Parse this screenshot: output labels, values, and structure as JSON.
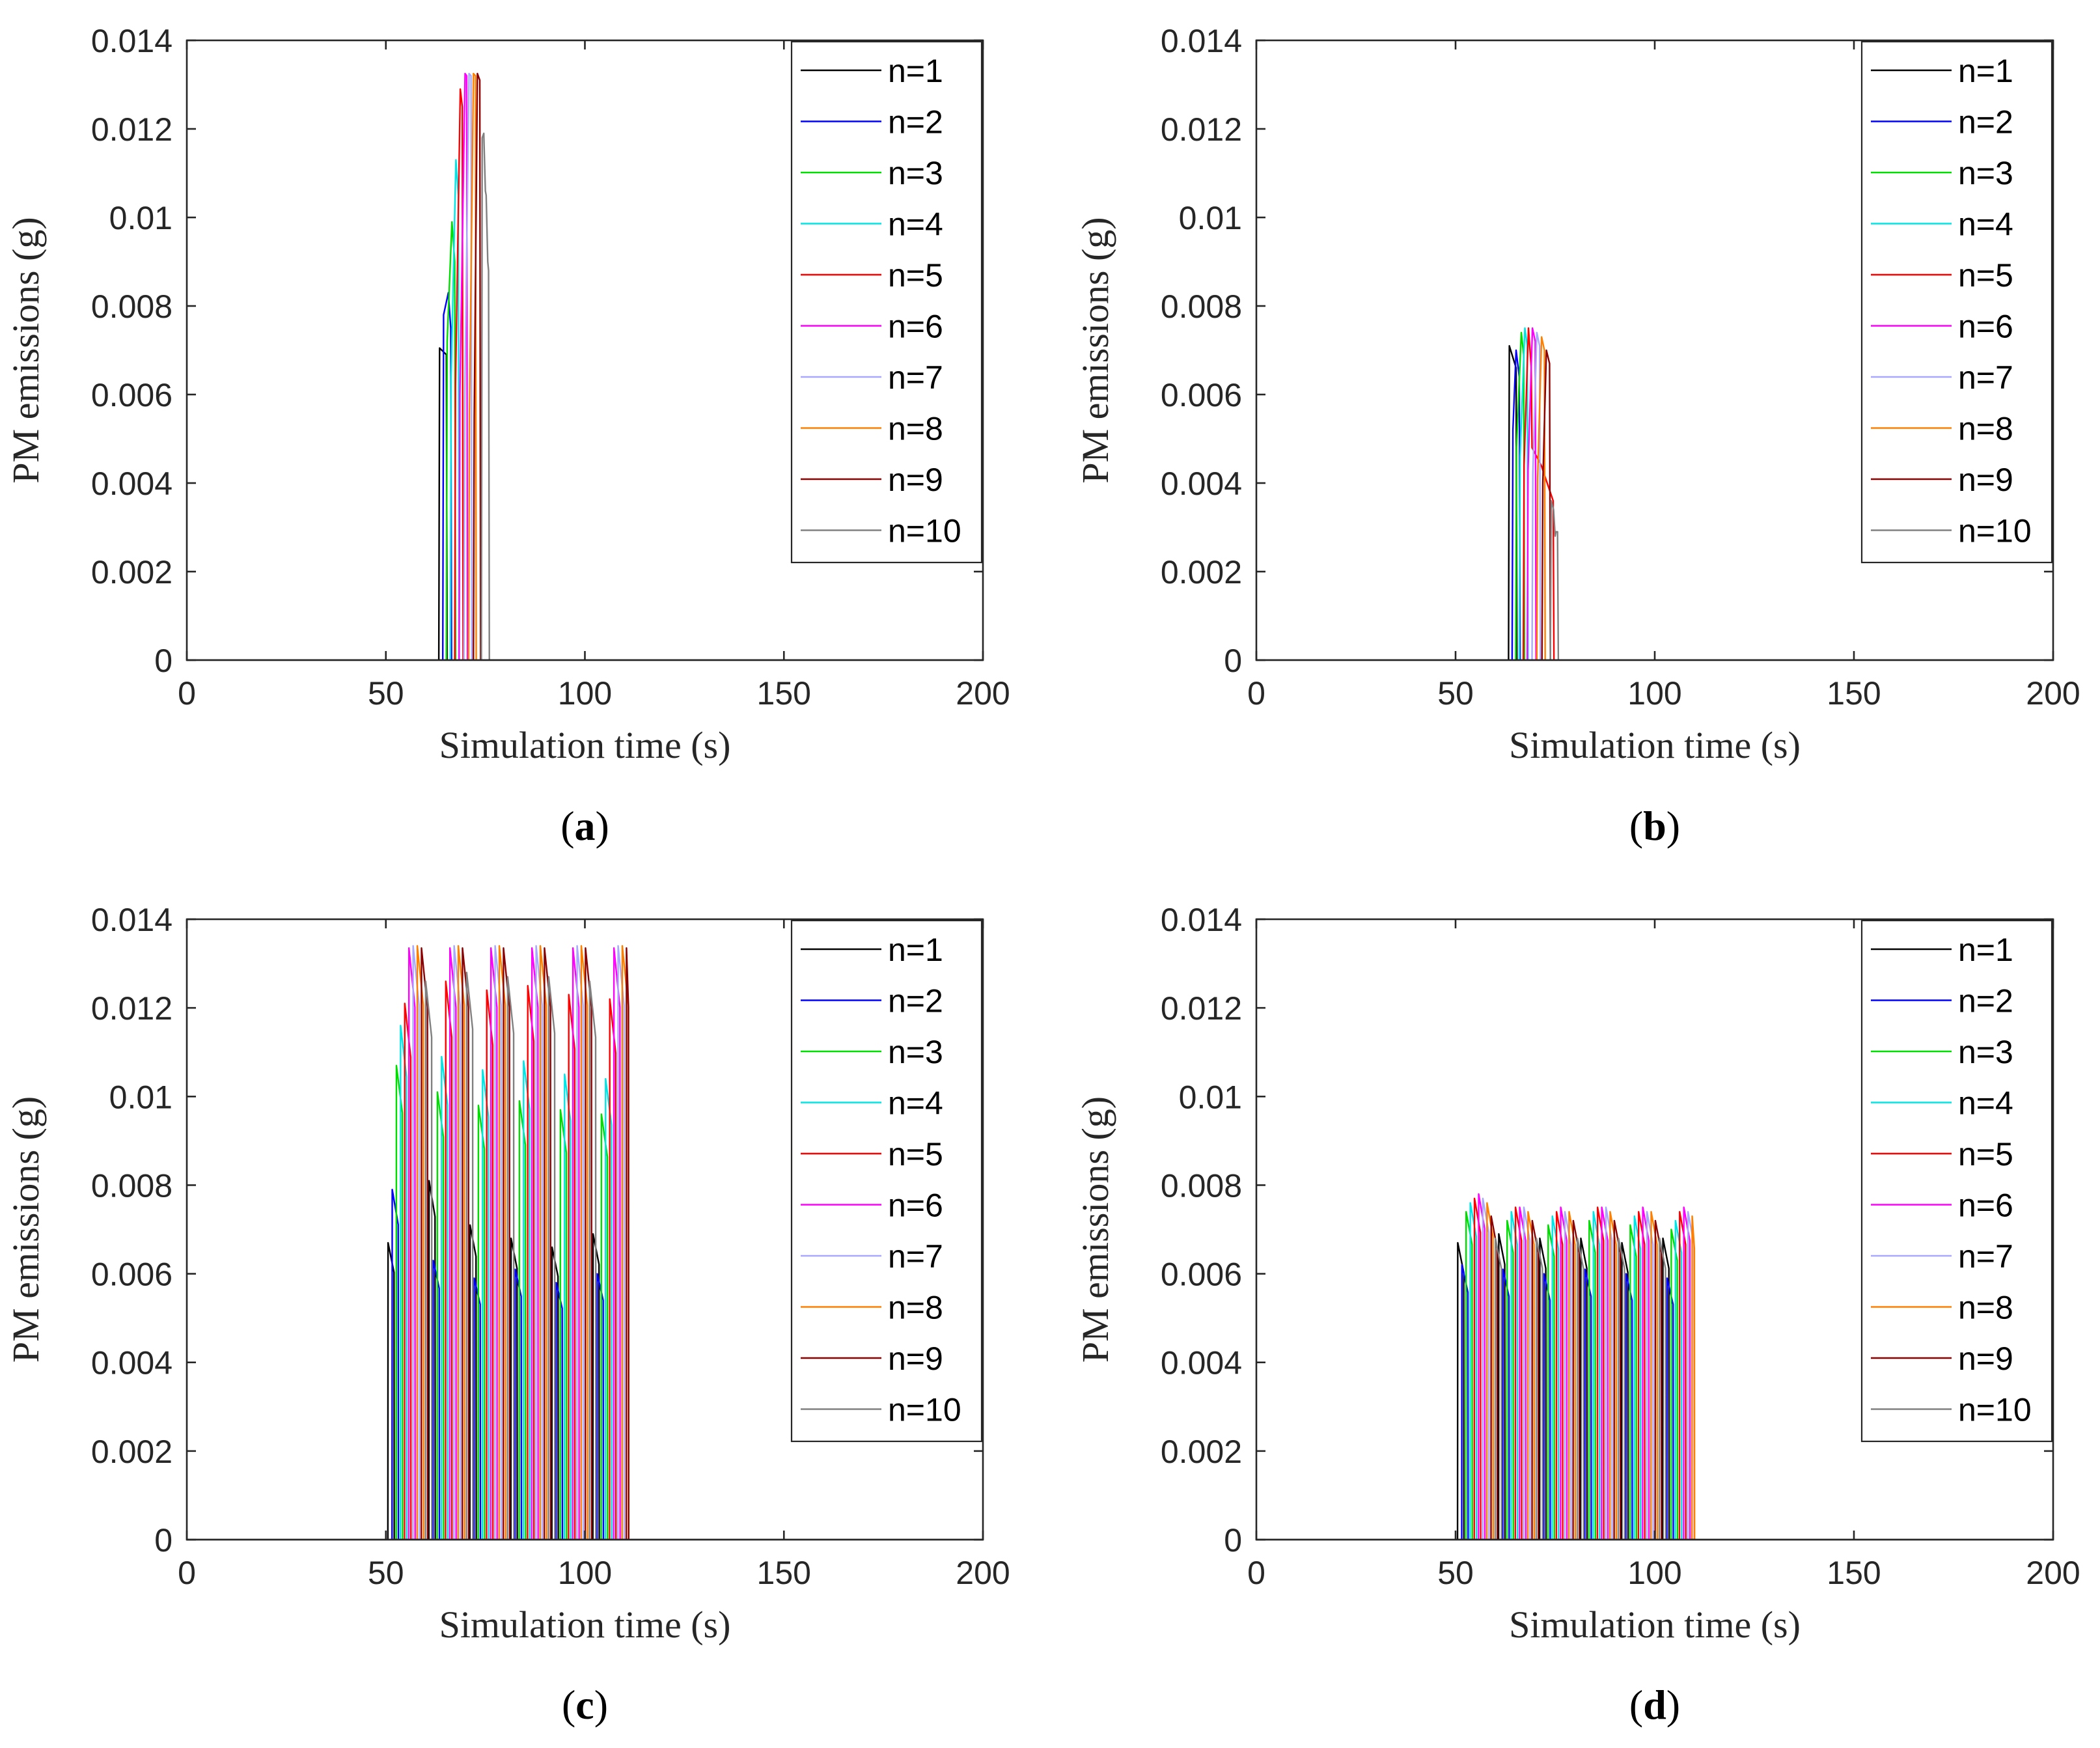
{
  "chart_data": [
    {
      "type": "line",
      "panel_label": {
        "open": "(",
        "letter": "a",
        "close": ")"
      },
      "xlabel": "Simulation time (s)",
      "ylabel": "PM emissions (g)",
      "xlim": [
        0,
        200
      ],
      "ylim": [
        0,
        0.014
      ],
      "xticks": [
        0,
        50,
        100,
        150,
        200
      ],
      "yticks": [
        0,
        0.002,
        0.004,
        0.006,
        0.008,
        0.01,
        0.012,
        0.014
      ],
      "xtick_labels": [
        "0",
        "50",
        "100",
        "150",
        "200"
      ],
      "ytick_labels": [
        "0",
        "0.002",
        "0.004",
        "0.006",
        "0.008",
        "0.01",
        "0.012",
        "0.014"
      ],
      "legend_position": "top-right",
      "series": [
        {
          "name": "n=1",
          "color": "#000000",
          "x": [
            63.3,
            63.5,
            65.2,
            65.4
          ],
          "y": [
            0,
            0.00705,
            0.0069,
            0
          ]
        },
        {
          "name": "n=2",
          "color": "#0000ff",
          "x": [
            64.3,
            64.5,
            65.7,
            66.3,
            66.5
          ],
          "y": [
            0,
            0.0078,
            0.0083,
            0.0075,
            0
          ]
        },
        {
          "name": "n=3",
          "color": "#00dd00",
          "x": [
            65.2,
            65.4,
            66.6,
            67.3,
            67.5
          ],
          "y": [
            0,
            0.0072,
            0.0099,
            0.009,
            0
          ]
        },
        {
          "name": "n=4",
          "color": "#00e5e5",
          "x": [
            66.2,
            66.4,
            67.6,
            68.2,
            68.4
          ],
          "y": [
            0,
            0.0064,
            0.0113,
            0.0105,
            0
          ]
        },
        {
          "name": "n=5",
          "color": "#ff0000",
          "x": [
            67.3,
            67.5,
            68.7,
            69.2,
            69.4
          ],
          "y": [
            0,
            0.0062,
            0.0129,
            0.0125,
            0
          ]
        },
        {
          "name": "n=6",
          "color": "#ff00ff",
          "x": [
            68.4,
            68.6,
            69.9,
            70.3,
            70.5
          ],
          "y": [
            0,
            0.006,
            0.01325,
            0.0132,
            0
          ]
        },
        {
          "name": "n=7",
          "color": "#a8a8ff",
          "x": [
            69.6,
            69.8,
            70.9,
            71.4,
            71.6
          ],
          "y": [
            0,
            0.0058,
            0.01325,
            0.0132,
            0
          ]
        },
        {
          "name": "n=8",
          "color": "#ff8000",
          "x": [
            70.8,
            71.0,
            72.0,
            72.5,
            72.7
          ],
          "y": [
            0,
            0.0056,
            0.01325,
            0.0132,
            0
          ]
        },
        {
          "name": "n=9",
          "color": "#8b0000",
          "x": [
            72.0,
            72.2,
            73.0,
            73.6,
            73.8
          ],
          "y": [
            0,
            0.0055,
            0.01325,
            0.0131,
            0
          ]
        },
        {
          "name": "n=10",
          "color": "#808080",
          "x": [
            74.0,
            74.2,
            74.6,
            75.0,
            75.2,
            75.6,
            75.8,
            76.0
          ],
          "y": [
            0,
            0.0118,
            0.0119,
            0.0106,
            0.0105,
            0.009,
            0.0088,
            0
          ]
        }
      ]
    },
    {
      "type": "line",
      "panel_label": {
        "open": "(",
        "letter": "b",
        "close": ")"
      },
      "xlabel": "Simulation time (s)",
      "ylabel": "PM emissions (g)",
      "xlim": [
        0,
        200
      ],
      "ylim": [
        0,
        0.014
      ],
      "xticks": [
        0,
        50,
        100,
        150,
        200
      ],
      "yticks": [
        0,
        0.002,
        0.004,
        0.006,
        0.008,
        0.01,
        0.012,
        0.014
      ],
      "xtick_labels": [
        "0",
        "50",
        "100",
        "150",
        "200"
      ],
      "ytick_labels": [
        "0",
        "0.002",
        "0.004",
        "0.006",
        "0.008",
        "0.01",
        "0.012",
        "0.014"
      ],
      "legend_position": "top-right",
      "series": [
        {
          "name": "n=1",
          "color": "#000000",
          "x": [
            63.3,
            63.5,
            65.2,
            65.4
          ],
          "y": [
            0,
            0.0071,
            0.0066,
            0
          ]
        },
        {
          "name": "n=2",
          "color": "#0000ff",
          "x": [
            64.2,
            64.4,
            65.2,
            66.0,
            66.2
          ],
          "y": [
            0,
            0.0052,
            0.007,
            0.0064,
            0
          ]
        },
        {
          "name": "n=3",
          "color": "#00dd00",
          "x": [
            65.1,
            65.3,
            66.5,
            67.1,
            67.3
          ],
          "y": [
            0,
            0.0048,
            0.0074,
            0.0069,
            0
          ]
        },
        {
          "name": "n=4",
          "color": "#00e5e5",
          "x": [
            66.0,
            66.2,
            67.4,
            68.0,
            68.2
          ],
          "y": [
            0,
            0.0046,
            0.0075,
            0.0071,
            0
          ]
        },
        {
          "name": "n=5",
          "color": "#ff0000",
          "x": [
            67.0,
            67.2,
            68.3,
            69.0,
            69.2,
            71.5,
            74.5,
            74.7
          ],
          "y": [
            0,
            0.0044,
            0.0075,
            0.0066,
            0.0048,
            0.0044,
            0.0036,
            0
          ]
        },
        {
          "name": "n=6",
          "color": "#ff00ff",
          "x": [
            68.0,
            68.2,
            69.3,
            70.0,
            70.2
          ],
          "y": [
            0,
            0.0043,
            0.0075,
            0.0072,
            0
          ]
        },
        {
          "name": "n=7",
          "color": "#a8a8ff",
          "x": [
            69.2,
            69.4,
            70.4,
            71.1,
            71.3
          ],
          "y": [
            0,
            0.0042,
            0.0074,
            0.0071,
            0
          ]
        },
        {
          "name": "n=8",
          "color": "#ff8000",
          "x": [
            70.4,
            70.6,
            71.6,
            72.3,
            72.5
          ],
          "y": [
            0,
            0.0041,
            0.0073,
            0.007,
            0
          ]
        },
        {
          "name": "n=9",
          "color": "#8b0000",
          "x": [
            71.7,
            71.9,
            72.8,
            73.6,
            73.8
          ],
          "y": [
            0,
            0.004,
            0.007,
            0.0067,
            0
          ]
        },
        {
          "name": "n=10",
          "color": "#808080",
          "x": [
            73.8,
            74.0,
            74.6,
            75.0,
            75.2,
            75.6,
            75.8
          ],
          "y": [
            0,
            0.0036,
            0.0034,
            0.0028,
            0.0029,
            0.0029,
            0
          ]
        }
      ]
    },
    {
      "type": "line",
      "panel_label": {
        "open": "(",
        "letter": "c",
        "close": ")"
      },
      "xlabel": "Simulation time (s)",
      "ylabel": "PM emissions (g)",
      "xlim": [
        0,
        200
      ],
      "ylim": [
        0,
        0.014
      ],
      "xticks": [
        0,
        50,
        100,
        150,
        200
      ],
      "yticks": [
        0,
        0.002,
        0.004,
        0.006,
        0.008,
        0.01,
        0.012,
        0.014
      ],
      "xtick_labels": [
        "0",
        "50",
        "100",
        "150",
        "200"
      ],
      "ytick_labels": [
        "0",
        "0.002",
        "0.004",
        "0.006",
        "0.008",
        "0.01",
        "0.012",
        "0.014"
      ],
      "legend_position": "top-right",
      "pulse_train": {
        "start": 50.5,
        "end": 111,
        "period": 10.3,
        "lag": 1.05
      },
      "series": [
        {
          "name": "n=1",
          "color": "#000000",
          "peaks": [
            0.0067,
            0.0081,
            0.0071,
            0.0068,
            0.0066,
            0.0069
          ]
        },
        {
          "name": "n=2",
          "color": "#0000ff",
          "peaks": [
            0.0079,
            0.0063,
            0.0059,
            0.0061,
            0.0058,
            0.006
          ]
        },
        {
          "name": "n=3",
          "color": "#00dd00",
          "peaks": [
            0.0107,
            0.0101,
            0.0098,
            0.0099,
            0.0097,
            0.0096
          ]
        },
        {
          "name": "n=4",
          "color": "#00e5e5",
          "peaks": [
            0.0116,
            0.0109,
            0.0106,
            0.0108,
            0.0105,
            0.0104
          ]
        },
        {
          "name": "n=5",
          "color": "#ff0000",
          "peaks": [
            0.0121,
            0.0126,
            0.0124,
            0.0125,
            0.0123,
            0.0122
          ]
        },
        {
          "name": "n=6",
          "color": "#ff00ff",
          "peaks": [
            0.01335,
            0.01335,
            0.01335,
            0.01335,
            0.01335,
            0.01335
          ]
        },
        {
          "name": "n=7",
          "color": "#a8a8ff",
          "peaks": [
            0.0134,
            0.0134,
            0.0134,
            0.0134,
            0.0134,
            0.0134
          ]
        },
        {
          "name": "n=8",
          "color": "#ff8000",
          "peaks": [
            0.0134,
            0.0134,
            0.0134,
            0.0134,
            0.0134,
            0.0134
          ]
        },
        {
          "name": "n=9",
          "color": "#8b0000",
          "peaks": [
            0.01335,
            0.01335,
            0.01335,
            0.01335,
            0.01335,
            0.01335
          ]
        },
        {
          "name": "n=10",
          "color": "#808080",
          "peaks": [
            0.0126,
            0.0128,
            0.0127,
            0.0127,
            0.0126,
            0.0116
          ]
        }
      ]
    },
    {
      "type": "line",
      "panel_label": {
        "open": "(",
        "letter": "d",
        "close": ")"
      },
      "xlabel": "Simulation time (s)",
      "ylabel": "PM emissions (g)",
      "xlim": [
        0,
        200
      ],
      "ylim": [
        0,
        0.014
      ],
      "xticks": [
        0,
        50,
        100,
        150,
        200
      ],
      "yticks": [
        0,
        0.002,
        0.004,
        0.006,
        0.008,
        0.01,
        0.012,
        0.014
      ],
      "xtick_labels": [
        "0",
        "50",
        "100",
        "150",
        "200"
      ],
      "ytick_labels": [
        "0",
        "0.002",
        "0.004",
        "0.006",
        "0.008",
        "0.01",
        "0.012",
        "0.014"
      ],
      "legend_position": "top-right",
      "pulse_train": {
        "start": 50.5,
        "end": 110,
        "period": 10.3,
        "lag": 1.05
      },
      "series": [
        {
          "name": "n=1",
          "color": "#000000",
          "peaks": [
            0.0067,
            0.0069,
            0.0068,
            0.0068,
            0.0067,
            0.0068
          ]
        },
        {
          "name": "n=2",
          "color": "#0000ff",
          "peaks": [
            0.0062,
            0.0061,
            0.006,
            0.0061,
            0.006,
            0.0059
          ]
        },
        {
          "name": "n=3",
          "color": "#00dd00",
          "peaks": [
            0.0074,
            0.0072,
            0.0071,
            0.0072,
            0.0071,
            0.007
          ]
        },
        {
          "name": "n=4",
          "color": "#00e5e5",
          "peaks": [
            0.0076,
            0.0074,
            0.0073,
            0.0074,
            0.0073,
            0.0072
          ]
        },
        {
          "name": "n=5",
          "color": "#ff0000",
          "peaks": [
            0.0077,
            0.0075,
            0.0074,
            0.0075,
            0.0074,
            0.0074
          ]
        },
        {
          "name": "n=6",
          "color": "#ff00ff",
          "peaks": [
            0.0078,
            0.0075,
            0.0075,
            0.0075,
            0.0075,
            0.0075
          ]
        },
        {
          "name": "n=7",
          "color": "#a8a8ff",
          "peaks": [
            0.0077,
            0.0075,
            0.0074,
            0.0075,
            0.0074,
            0.0074
          ]
        },
        {
          "name": "n=8",
          "color": "#ff8000",
          "peaks": [
            0.0076,
            0.0074,
            0.0074,
            0.0074,
            0.0074,
            0.0073
          ]
        },
        {
          "name": "n=9",
          "color": "#8b0000",
          "peaks": [
            0.0073,
            0.0072,
            0.0072,
            0.0072,
            0.0072,
            0.007
          ]
        },
        {
          "name": "n=10",
          "color": "#808080",
          "peaks": [
            0.0068,
            0.0068,
            0.0068,
            0.0068,
            0.0068,
            0.0035
          ]
        }
      ]
    }
  ]
}
